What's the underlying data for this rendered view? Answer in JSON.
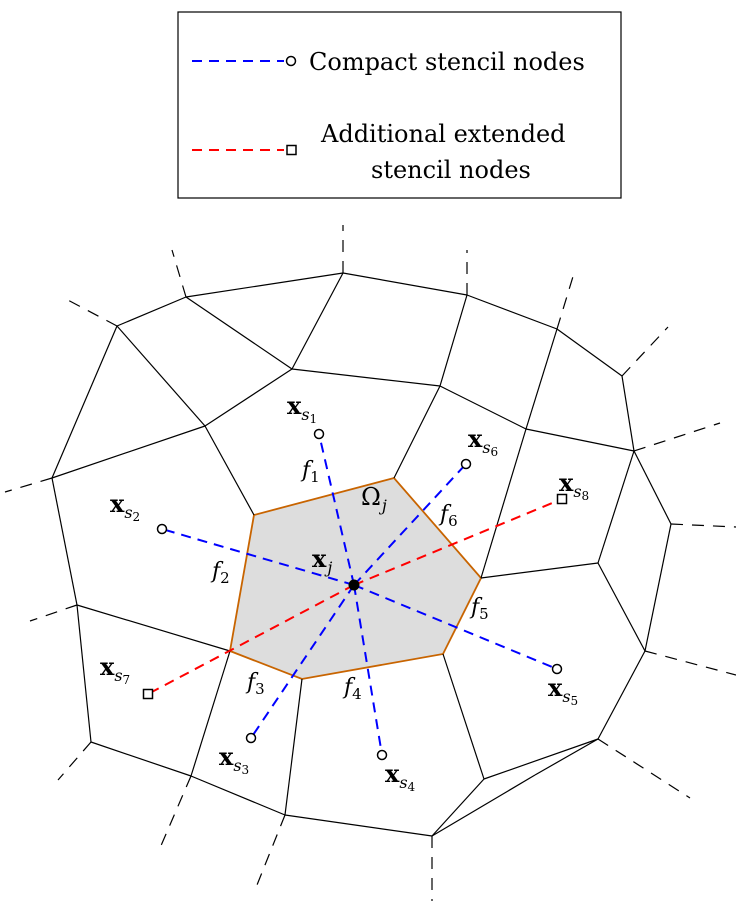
{
  "legend": {
    "compact": "Compact stencil nodes",
    "extended_line1": "Additional extended",
    "extended_line2": "stencil nodes",
    "compact_color": "#0000ff",
    "extended_color": "#ff0000"
  },
  "cell_label": {
    "sym": "Ω",
    "sub": "j"
  },
  "center_label": {
    "sym": "x",
    "sub": "j"
  },
  "face_labels": [
    {
      "sym": "f",
      "sub": "1"
    },
    {
      "sym": "f",
      "sub": "2"
    },
    {
      "sym": "f",
      "sub": "3"
    },
    {
      "sym": "f",
      "sub": "4"
    },
    {
      "sym": "f",
      "sub": "5"
    },
    {
      "sym": "f",
      "sub": "6"
    }
  ],
  "node_labels": [
    {
      "sym": "x",
      "sub": "s",
      "subsub": "1"
    },
    {
      "sym": "x",
      "sub": "s",
      "subsub": "2"
    },
    {
      "sym": "x",
      "sub": "s",
      "subsub": "3"
    },
    {
      "sym": "x",
      "sub": "s",
      "subsub": "4"
    },
    {
      "sym": "x",
      "sub": "s",
      "subsub": "5"
    },
    {
      "sym": "x",
      "sub": "s",
      "subsub": "6"
    },
    {
      "sym": "x",
      "sub": "s",
      "subsub": "7"
    },
    {
      "sym": "x",
      "sub": "s",
      "subsub": "8"
    }
  ],
  "colors": {
    "cell_fill": "#dddddd",
    "cell_edge": "#c86400",
    "mesh": "#000000"
  }
}
